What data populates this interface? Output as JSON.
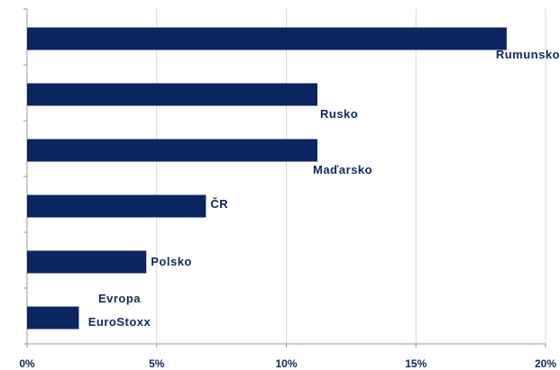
{
  "chart_data": {
    "type": "bar",
    "orientation": "horizontal",
    "categories": [
      "Rumunsko",
      "Rusko",
      "Maďarsko",
      "ČR",
      "Polsko",
      "Evropa EuroStoxx"
    ],
    "values": [
      18.5,
      11.2,
      11.2,
      6.9,
      4.6,
      2.0
    ],
    "color": "#0b2560",
    "xlim": [
      0,
      20
    ],
    "xticks": [
      {
        "value": 0,
        "label": "0%"
      },
      {
        "value": 5,
        "label": "5%"
      },
      {
        "value": 10,
        "label": "10%"
      },
      {
        "value": 15,
        "label": "15%"
      },
      {
        "value": 20,
        "label": "20%"
      }
    ],
    "grid": true
  }
}
